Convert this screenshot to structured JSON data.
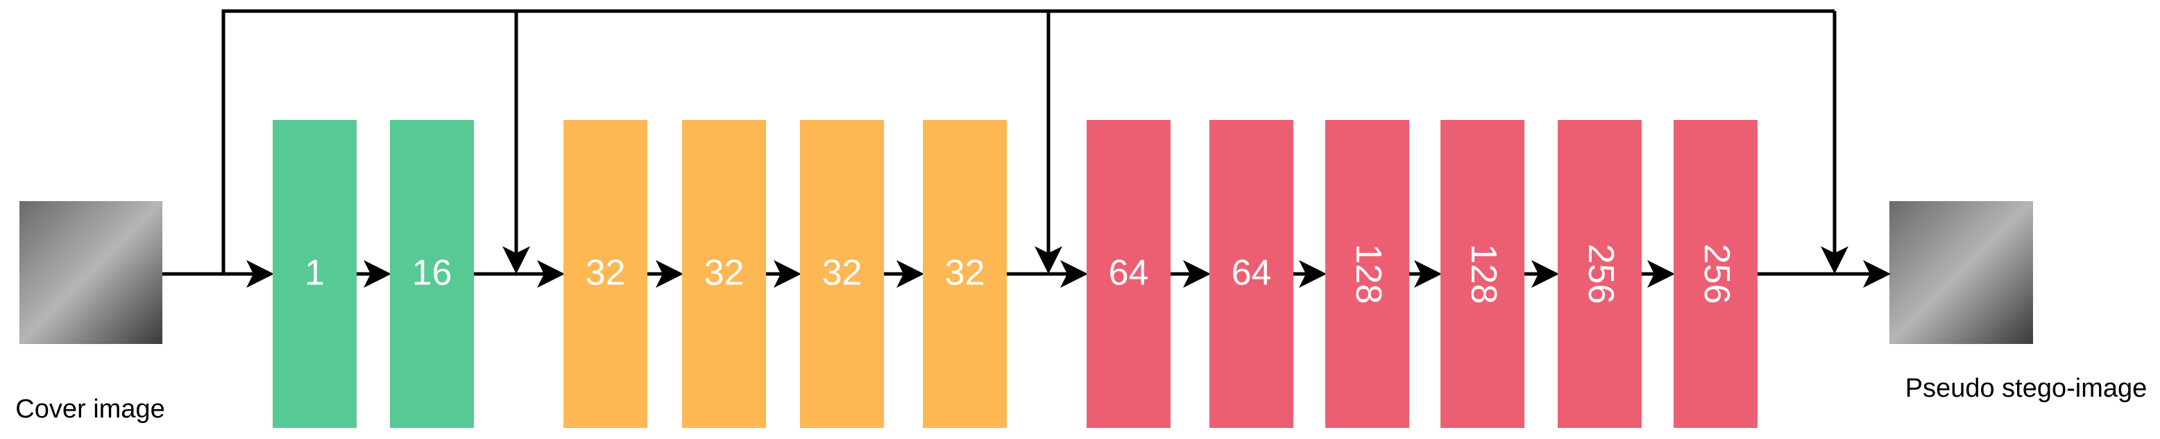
{
  "labels": {
    "input": "Cover image",
    "output": "Pseudo stego-image"
  },
  "nodes": [
    {
      "label": "1",
      "color": "#56c995"
    },
    {
      "label": "16",
      "color": "#56c995"
    },
    {
      "label": "32",
      "color": "#fdb753"
    },
    {
      "label": "32",
      "color": "#fdb753"
    },
    {
      "label": "32",
      "color": "#fdb753"
    },
    {
      "label": "32",
      "color": "#fdb753"
    },
    {
      "label": "64",
      "color": "#ec5f72"
    },
    {
      "label": "64",
      "color": "#ec5f72"
    },
    {
      "label": "128",
      "color": "#ec5f72"
    },
    {
      "label": "128",
      "color": "#ec5f72"
    },
    {
      "label": "256",
      "color": "#ec5f72"
    },
    {
      "label": "256",
      "color": "#ec5f72"
    }
  ]
}
